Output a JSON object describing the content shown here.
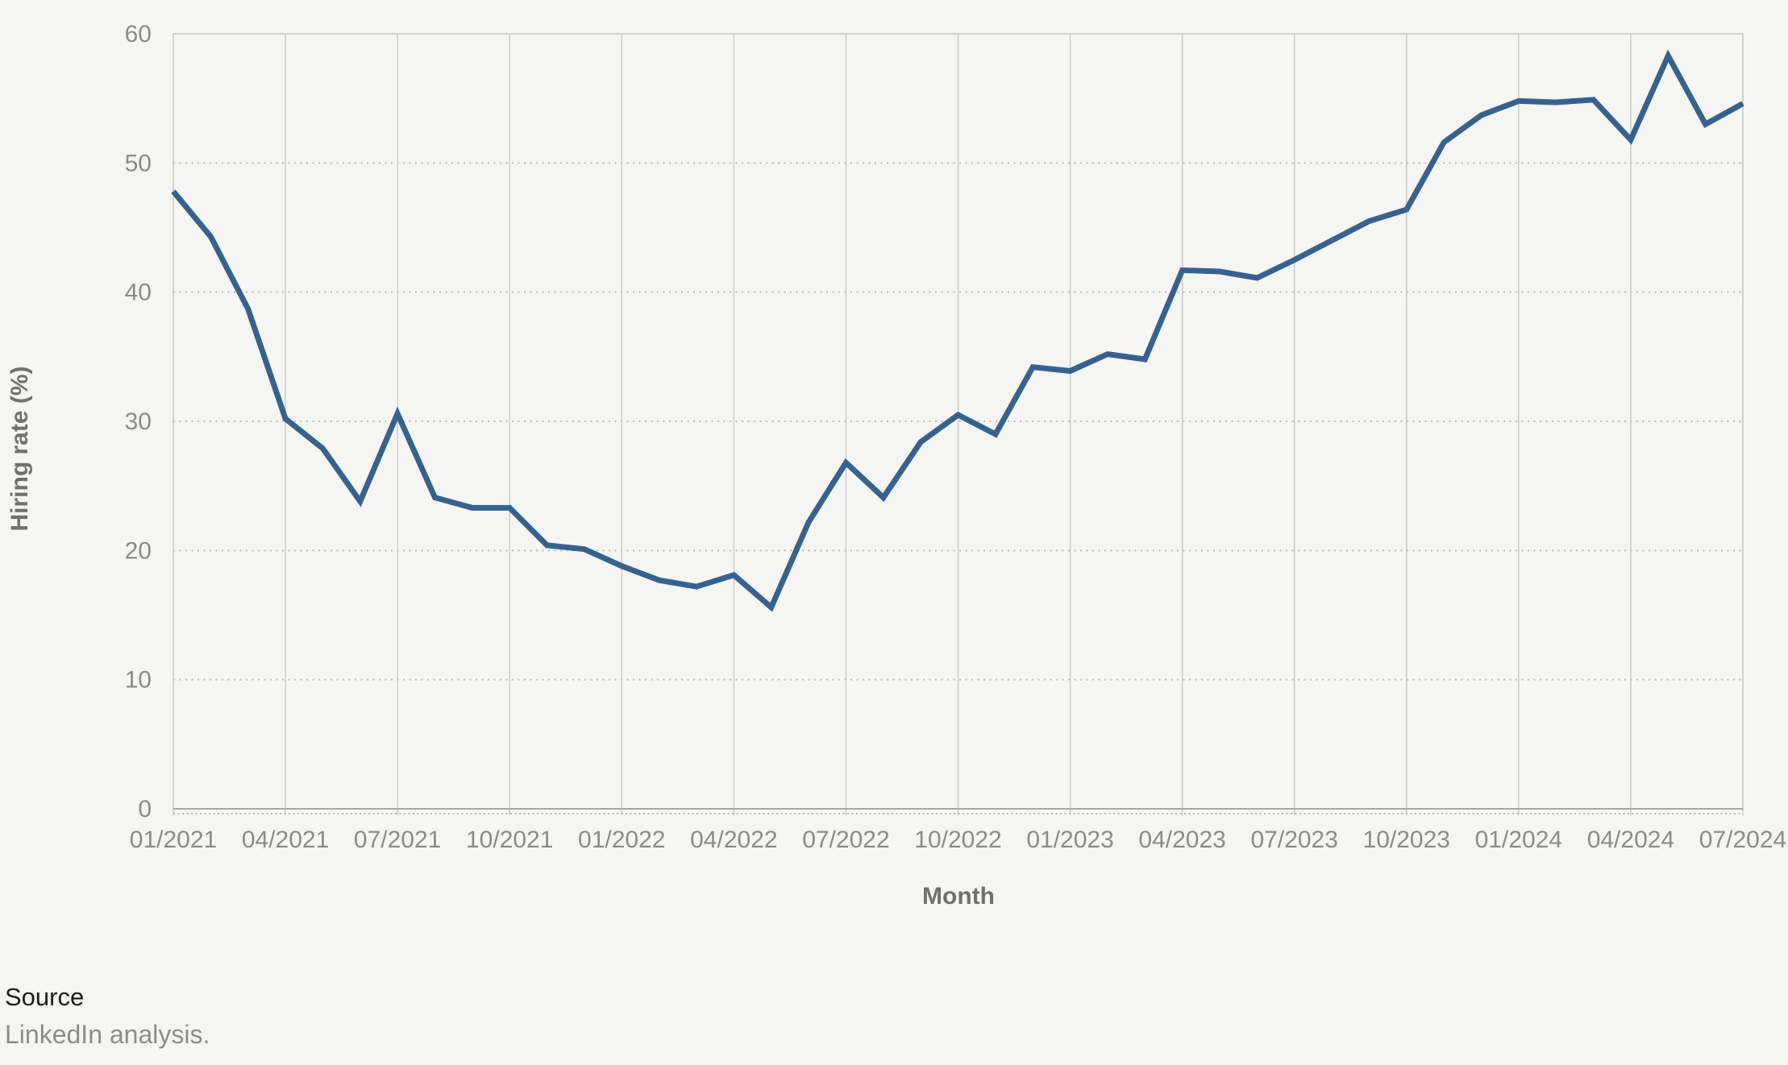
{
  "chart_data": {
    "type": "line",
    "title": "",
    "xlabel": "Month",
    "ylabel": "Hiring rate (%)",
    "line_color": "#35628f",
    "grid": "vertical-solid, horizontal-dotted",
    "legend": "none",
    "ylim": [
      0,
      60
    ],
    "y_ticks": [
      0,
      10,
      20,
      30,
      40,
      50,
      60
    ],
    "x_tick_labels": [
      "01/2021",
      "04/2021",
      "07/2021",
      "10/2021",
      "01/2022",
      "04/2022",
      "07/2022",
      "10/2022",
      "01/2023",
      "04/2023",
      "07/2023",
      "10/2023",
      "01/2024",
      "04/2024",
      "07/2024"
    ],
    "x": [
      "01/2021",
      "02/2021",
      "03/2021",
      "04/2021",
      "05/2021",
      "06/2021",
      "07/2021",
      "08/2021",
      "09/2021",
      "10/2021",
      "11/2021",
      "12/2021",
      "01/2022",
      "02/2022",
      "03/2022",
      "04/2022",
      "05/2022",
      "06/2022",
      "07/2022",
      "08/2022",
      "09/2022",
      "10/2022",
      "11/2022",
      "12/2022",
      "01/2023",
      "02/2023",
      "03/2023",
      "04/2023",
      "05/2023",
      "06/2023",
      "07/2023",
      "08/2023",
      "09/2023",
      "10/2023",
      "11/2023",
      "12/2023",
      "01/2024",
      "02/2024",
      "03/2024",
      "04/2024",
      "05/2024",
      "06/2024",
      "07/2024"
    ],
    "series": [
      {
        "name": "Hiring rate",
        "values": [
          47.8,
          44.3,
          38.7,
          30.2,
          27.9,
          23.8,
          30.6,
          24.1,
          23.3,
          23.3,
          20.4,
          20.1,
          18.8,
          17.7,
          17.2,
          18.1,
          15.6,
          22.2,
          26.8,
          24.1,
          28.4,
          30.5,
          29.0,
          34.2,
          33.9,
          35.2,
          34.8,
          41.7,
          41.6,
          41.1,
          42.5,
          44.0,
          45.5,
          46.4,
          51.6,
          53.7,
          54.8,
          54.7,
          54.9,
          51.8,
          58.3,
          53.0,
          54.6
        ]
      }
    ]
  },
  "source": {
    "label": "Source",
    "text": "LinkedIn analysis."
  },
  "colors": {
    "background": "#f5f5f3",
    "line": "#35628f",
    "tick_text": "#8b8b8b",
    "axis_title_text": "#707070",
    "source_label_text": "#1d1d1b",
    "source_text": "#8c8c8c"
  }
}
